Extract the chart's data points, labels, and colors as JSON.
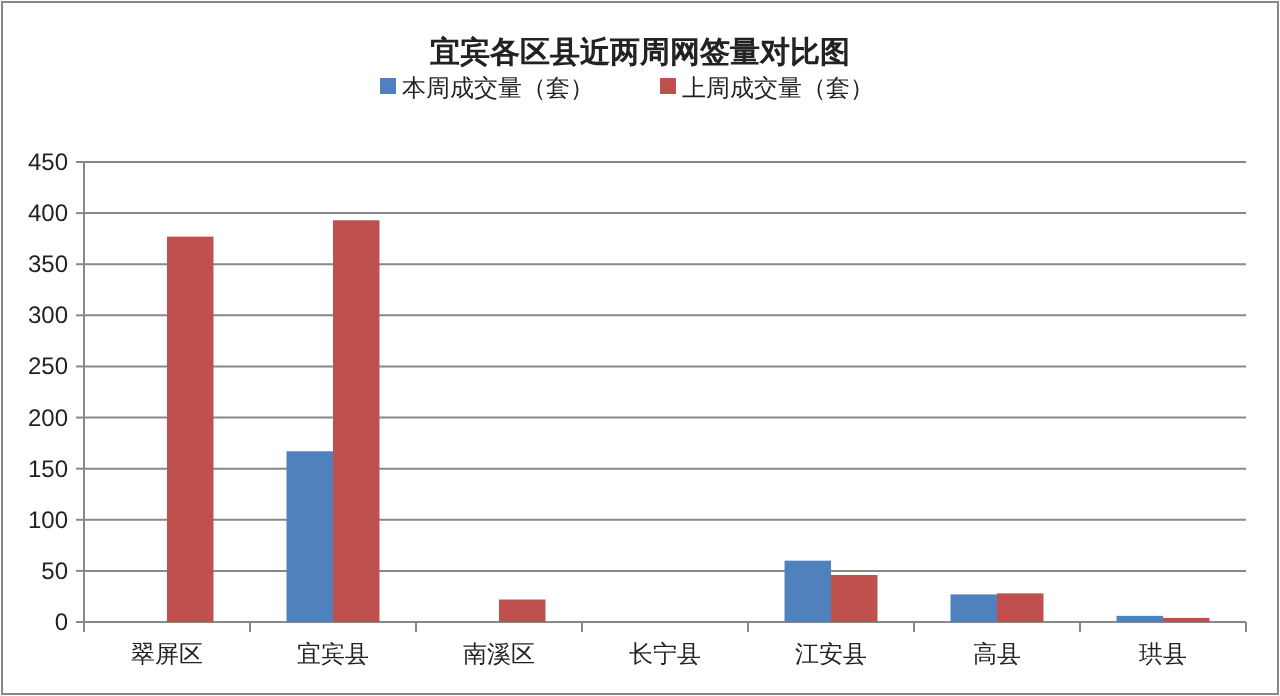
{
  "chart_data": {
    "type": "bar",
    "title": "宜宾各区县近两周网签量对比图",
    "categories": [
      "翠屏区",
      "宜宾县",
      "南溪区",
      "长宁县",
      "江安县",
      "高县",
      "珙县"
    ],
    "series": [
      {
        "name": "本周成交量（套）",
        "color": "#4f81bd",
        "values": [
          0,
          167,
          0,
          0,
          60,
          27,
          6
        ]
      },
      {
        "name": "上周成交量（套）",
        "color": "#c0504d",
        "values": [
          377,
          393,
          22,
          0,
          46,
          28,
          4
        ]
      }
    ],
    "ylim": [
      0,
      450
    ],
    "yticks": [
      0,
      50,
      100,
      150,
      200,
      250,
      300,
      350,
      400,
      450
    ],
    "grid": "y",
    "legend": "top"
  }
}
